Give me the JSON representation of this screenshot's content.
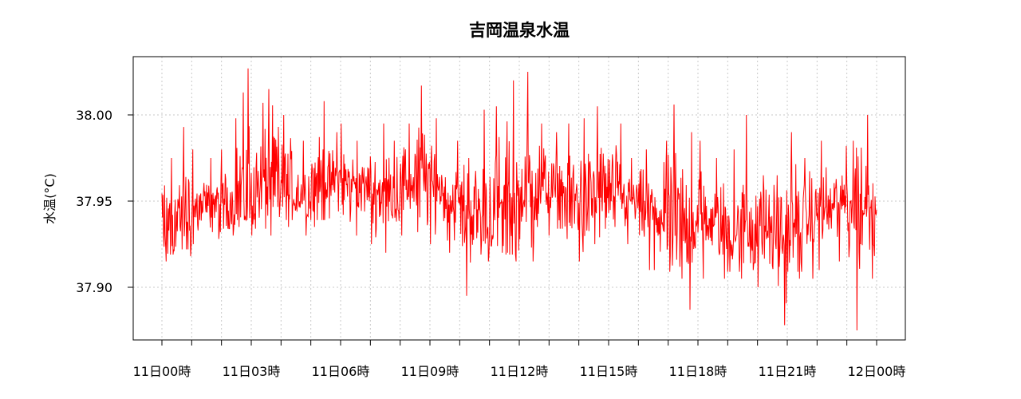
{
  "chart_data": {
    "type": "line",
    "title": "吉岡温泉水温",
    "xlabel": "",
    "ylabel": "水温(°C)",
    "ylim": [
      37.865,
      38.285
    ],
    "xlim_hours": [
      -1,
      25
    ],
    "yticks": [
      37.9,
      37.95,
      38.0
    ],
    "ytick_labels": [
      "37.90",
      "37.95",
      "38.00"
    ],
    "xticks_hours": [
      0,
      3,
      6,
      9,
      12,
      15,
      18,
      21,
      24
    ],
    "xtick_labels": [
      "11日00時",
      "11日03時",
      "11日06時",
      "11日09時",
      "11日12時",
      "11日15時",
      "11日18時",
      "11日21時",
      "12日00時"
    ],
    "minor_xticks_hours": [
      1,
      2,
      4,
      5,
      7,
      8,
      10,
      11,
      13,
      14,
      16,
      17,
      19,
      20,
      22,
      23
    ],
    "grid": true,
    "series": [
      {
        "color": "#ff0000",
        "x_hours": [
          0,
          0.5,
          1,
          1.5,
          2,
          2.5,
          3,
          3.5,
          4,
          4.5,
          5,
          5.5,
          6,
          6.5,
          7,
          7.5,
          8,
          8.5,
          9,
          9.5,
          10,
          10.5,
          11,
          11.5,
          12,
          12.5,
          13,
          13.5,
          14,
          14.5,
          15,
          15.5,
          16,
          16.5,
          17,
          17.5,
          18,
          18.5,
          19,
          19.5,
          20,
          20.5,
          21,
          21.5,
          22,
          22.5,
          23,
          23.5,
          24
        ],
        "mean": [
          37.935,
          37.94,
          37.945,
          37.948,
          37.95,
          37.955,
          37.958,
          37.96,
          37.958,
          37.955,
          37.96,
          37.962,
          37.96,
          37.958,
          37.955,
          37.955,
          37.96,
          37.962,
          37.958,
          37.95,
          37.945,
          37.942,
          37.945,
          37.948,
          37.955,
          37.958,
          37.955,
          37.95,
          37.95,
          37.955,
          37.955,
          37.95,
          37.945,
          37.94,
          37.935,
          37.938,
          37.94,
          37.935,
          37.932,
          37.935,
          37.935,
          37.93,
          37.935,
          37.94,
          37.945,
          37.948,
          37.95,
          37.948,
          37.945
        ],
        "min": [
          37.915,
          37.918,
          37.925,
          37.928,
          37.93,
          37.935,
          37.93,
          37.93,
          37.935,
          37.93,
          37.935,
          37.94,
          37.938,
          37.93,
          37.925,
          37.92,
          37.93,
          37.932,
          37.925,
          37.92,
          37.895,
          37.915,
          37.92,
          37.915,
          37.915,
          37.935,
          37.93,
          37.928,
          37.915,
          37.925,
          37.935,
          37.925,
          37.91,
          37.91,
          37.905,
          37.887,
          37.905,
          37.905,
          37.905,
          37.91,
          37.9,
          37.878,
          37.905,
          37.905,
          37.91,
          37.915,
          37.875,
          37.905,
          37.915
        ],
        "max": [
          37.975,
          37.993,
          37.98,
          37.975,
          37.998,
          38.027,
          38.007,
          38.015,
          38.0,
          37.985,
          38.008,
          37.99,
          37.995,
          37.985,
          37.995,
          37.985,
          37.995,
          38.017,
          37.998,
          37.985,
          37.975,
          38.003,
          38.005,
          38.02,
          38.025,
          37.995,
          37.99,
          37.995,
          37.998,
          38.005,
          37.995,
          37.975,
          37.98,
          37.985,
          38.006,
          37.99,
          37.985,
          37.975,
          37.98,
          38.0,
          37.965,
          37.965,
          37.99,
          37.975,
          37.985,
          37.982,
          37.985,
          38.0,
          37.975
        ]
      }
    ]
  }
}
